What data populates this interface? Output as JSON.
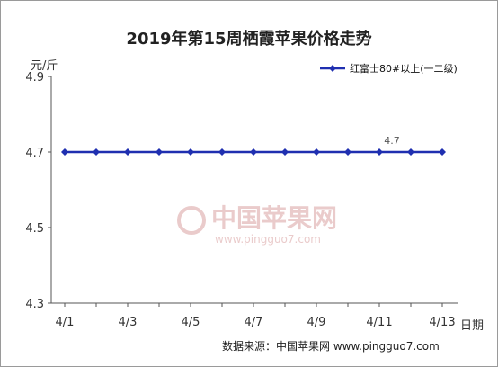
{
  "chart_data": {
    "type": "line",
    "title": "2019年第15周栖霞苹果价格走势",
    "ylabel": "元/斤",
    "xlabel": "日期",
    "ylim": [
      4.3,
      4.9
    ],
    "yticks": [
      "4.9",
      "4.7",
      "4.5",
      "4.3"
    ],
    "x": [
      "4/1",
      "4/2",
      "4/3",
      "4/4",
      "4/5",
      "4/6",
      "4/7",
      "4/8",
      "4/9",
      "4/10",
      "4/11",
      "4/12",
      "4/13"
    ],
    "x_tick_labels": [
      "4/1",
      "4/3",
      "4/5",
      "4/7",
      "4/9",
      "4/11",
      "4/13"
    ],
    "series": [
      {
        "name": "红富士80#以上(一二级)",
        "values": [
          4.7,
          4.7,
          4.7,
          4.7,
          4.7,
          4.7,
          4.7,
          4.7,
          4.7,
          4.7,
          4.7,
          4.7,
          4.7
        ],
        "color": "#1f2fb0"
      }
    ],
    "annotations": [
      {
        "x": "4/11",
        "text": "4.7"
      }
    ],
    "grid": false,
    "legend": "top-right"
  },
  "source": "数据来源：中国苹果网 www.pingguo7.com",
  "watermark": {
    "text": "中国苹果网",
    "url": "www.pingguo7.com"
  }
}
